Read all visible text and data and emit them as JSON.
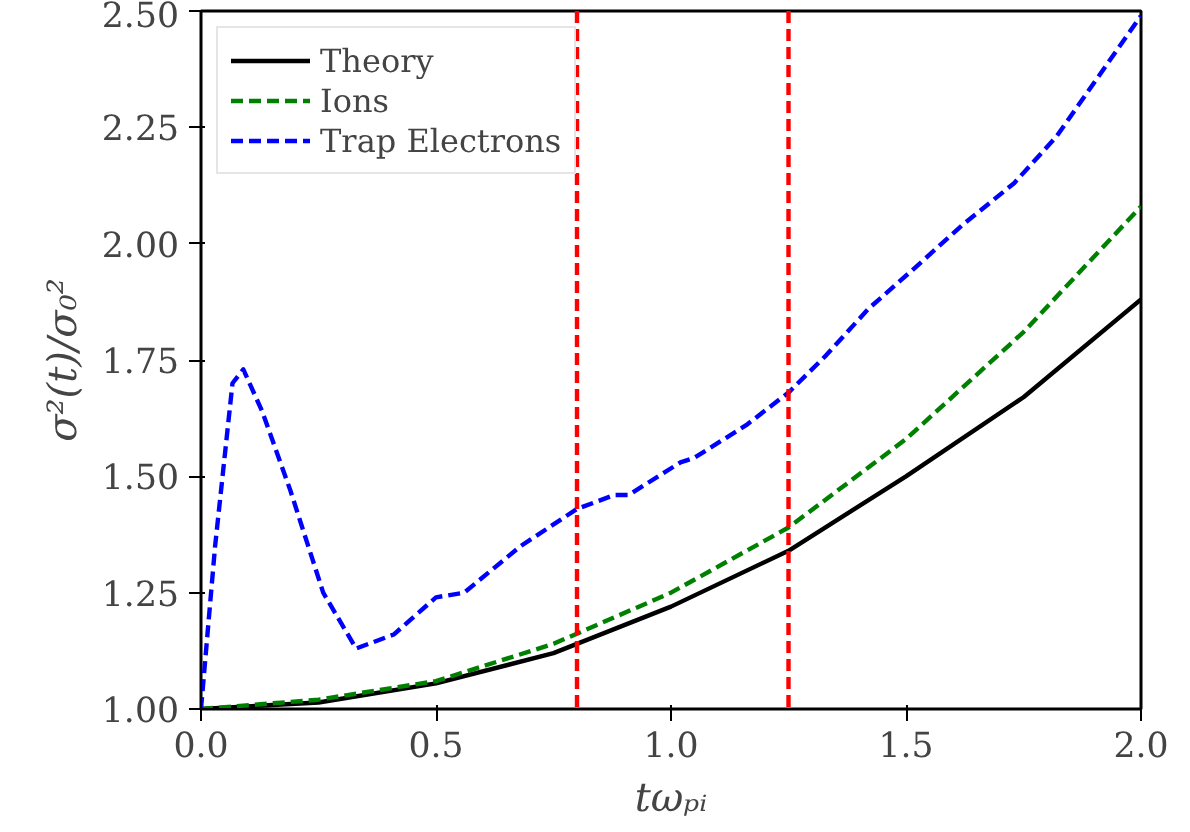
{
  "chart_data": {
    "type": "line",
    "xlabel": "tωₚᵢ",
    "ylabel": "σ²(t)/σ₀²",
    "xlim": [
      0,
      2
    ],
    "ylim": [
      1,
      2.5
    ],
    "xticks": [
      {
        "value": 0,
        "label": "0.0"
      },
      0.5,
      {
        "value": 1,
        "label": "1.0"
      },
      1.5,
      {
        "value": 2,
        "label": "2.0"
      }
    ],
    "yticks": [
      {
        "value": 1,
        "label": "1.00"
      },
      1.25,
      {
        "value": 1.5,
        "label": "1.50"
      },
      1.75,
      {
        "value": 2,
        "label": "2.00"
      },
      2.25,
      {
        "value": 2.5,
        "label": "2.50"
      }
    ],
    "grid": false,
    "legend": "top left",
    "series": [
      {
        "name": "Theory",
        "color": "#000000",
        "line_style": "solid",
        "x": [
          0,
          0.25,
          0.5,
          0.75,
          1.0,
          1.25,
          1.5,
          1.75,
          2.0
        ],
        "values": [
          1.0,
          1.014,
          1.055,
          1.12,
          1.22,
          1.34,
          1.5,
          1.67,
          1.88
        ]
      },
      {
        "name": "Ions",
        "color": "#008000",
        "line_style": "dashed",
        "x": [
          0,
          0.25,
          0.5,
          0.75,
          1.0,
          1.25,
          1.5,
          1.75,
          2.0
        ],
        "values": [
          1.0,
          1.02,
          1.06,
          1.14,
          1.25,
          1.39,
          1.58,
          1.81,
          2.08
        ]
      },
      {
        "name": "Trap Electrons",
        "color": "#0000ff",
        "line_style": "dashed",
        "x": [
          0,
          0.03,
          0.067,
          0.09,
          0.13,
          0.19,
          0.26,
          0.33,
          0.41,
          0.5,
          0.56,
          0.68,
          0.8,
          0.88,
          0.91,
          1.02,
          1.05,
          1.16,
          1.25,
          1.33,
          1.42,
          1.51,
          1.62,
          1.73,
          1.82,
          1.91,
          2.0
        ],
        "values": [
          1.0,
          1.35,
          1.7,
          1.73,
          1.64,
          1.47,
          1.25,
          1.13,
          1.16,
          1.24,
          1.25,
          1.35,
          1.43,
          1.46,
          1.46,
          1.53,
          1.54,
          1.61,
          1.68,
          1.76,
          1.86,
          1.94,
          2.04,
          2.13,
          2.23,
          2.36,
          2.49
        ]
      }
    ],
    "ref_lines": [
      {
        "axis": "x",
        "value": 0.8,
        "color": "#ff0000",
        "line_style": "dashed"
      },
      {
        "axis": "x",
        "value": 1.25,
        "color": "#ff0000",
        "line_style": "dashed"
      }
    ]
  }
}
